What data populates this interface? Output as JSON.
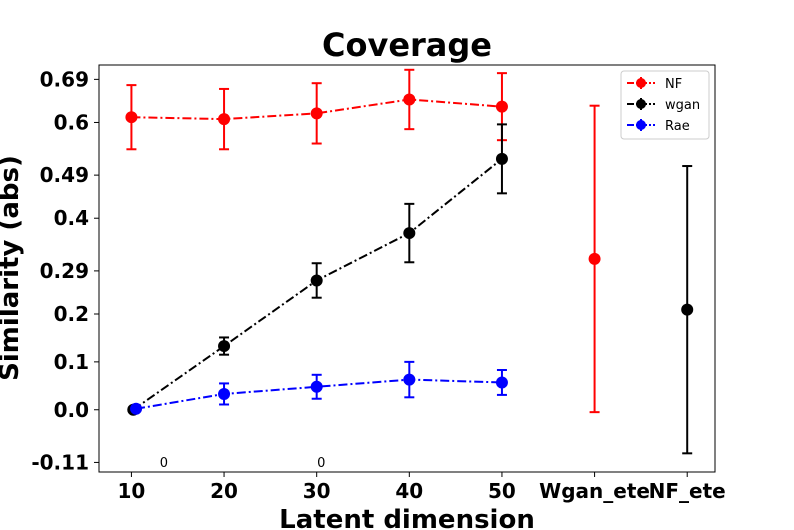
{
  "chart_data": {
    "type": "scatter",
    "title": "Coverage",
    "xlabel": "Latent dimension",
    "ylabel": "Similarity (abs)",
    "categories": [
      "10",
      "20",
      "30",
      "40",
      "50",
      "Wgan_ete",
      "NF_ete"
    ],
    "y_ticks": [
      "0.69",
      "0.6",
      "0.49",
      "0.4",
      "0.29",
      "0.2",
      "0.1",
      "0.0",
      "-0.11"
    ],
    "ylim": [
      -0.13,
      0.72
    ],
    "xlim": [
      -0.35,
      6.3
    ],
    "grid": false,
    "legend_position": "top-right",
    "annotations": [
      {
        "text": "0",
        "x": 0.35,
        "y": -0.12
      },
      {
        "text": "0",
        "x": 2.05,
        "y": -0.12
      }
    ],
    "series": [
      {
        "name": "NF",
        "color": "#ff0000",
        "linestyle": "dashdot",
        "points": [
          {
            "x": 0,
            "y": 0.611,
            "err": 0.067
          },
          {
            "x": 1,
            "y": 0.607,
            "err": 0.063
          },
          {
            "x": 2,
            "y": 0.619,
            "err": 0.063
          },
          {
            "x": 3,
            "y": 0.648,
            "err": 0.062
          },
          {
            "x": 4,
            "y": 0.633,
            "err": 0.07
          }
        ]
      },
      {
        "name": "wgan",
        "color": "#000000",
        "linestyle": "dashdot",
        "points": [
          {
            "x": 0.02,
            "y": 0.0,
            "err": 0.0
          },
          {
            "x": 1,
            "y": 0.133,
            "err": 0.018
          },
          {
            "x": 2,
            "y": 0.27,
            "err": 0.036
          },
          {
            "x": 3,
            "y": 0.369,
            "err": 0.061
          },
          {
            "x": 4,
            "y": 0.524,
            "err": 0.072
          }
        ]
      },
      {
        "name": "Rae",
        "color": "#0000ff",
        "linestyle": "dashdot",
        "points": [
          {
            "x": 0.05,
            "y": 0.002,
            "err": 0.0
          },
          {
            "x": 1,
            "y": 0.033,
            "err": 0.022
          },
          {
            "x": 2,
            "y": 0.048,
            "err": 0.025
          },
          {
            "x": 3,
            "y": 0.063,
            "err": 0.037
          },
          {
            "x": 4,
            "y": 0.057,
            "err": 0.026
          }
        ]
      }
    ],
    "standalone_points": [
      {
        "series": "NF",
        "x": 5,
        "y": 0.315,
        "err": 0.32,
        "color": "#ff0000"
      },
      {
        "series": "wgan",
        "x": 6,
        "y": 0.209,
        "err": 0.3,
        "color": "#000000"
      }
    ]
  }
}
